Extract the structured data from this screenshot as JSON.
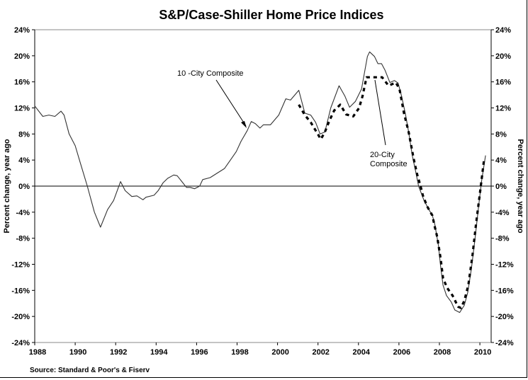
{
  "chart_data": {
    "type": "line",
    "title": "S&P/Case-Shiller Home Price Indices",
    "xlabel": "",
    "ylabel": "Percent change, year ago",
    "ylabel_right": "Percent change, year ago",
    "xlim": [
      1988,
      2010.5
    ],
    "ylim": [
      -24,
      24
    ],
    "x_ticks": [
      "1988",
      "1990",
      "1992",
      "1994",
      "1996",
      "1998",
      "2000",
      "2002",
      "2004",
      "2006",
      "2008",
      "2010"
    ],
    "y_ticks": [
      "24%",
      "20%",
      "16%",
      "12%",
      "8%",
      "4%",
      "0%",
      "-4%",
      "-8%",
      "-12%",
      "-16%",
      "-20%",
      "-24%"
    ],
    "grid": false,
    "source": "Source: Standard & Poor's & Fiserv",
    "annotations": [
      {
        "text": "10 -City Composite",
        "series": "10-City Composite"
      },
      {
        "text_lines": [
          "20-City",
          "Composite"
        ],
        "series": "20-City Composite"
      }
    ],
    "series": [
      {
        "name": "10-City Composite",
        "style": "solid",
        "color": "#333333",
        "points": [
          [
            1988.0,
            12.3
          ],
          [
            1988.4,
            10.7
          ],
          [
            1988.7,
            10.9
          ],
          [
            1989.0,
            10.7
          ],
          [
            1989.3,
            11.5
          ],
          [
            1989.45,
            10.9
          ],
          [
            1989.7,
            8.0
          ],
          [
            1990.0,
            6.2
          ],
          [
            1990.25,
            3.6
          ],
          [
            1990.6,
            0.0
          ],
          [
            1990.95,
            -4.0
          ],
          [
            1991.25,
            -6.3
          ],
          [
            1991.6,
            -3.6
          ],
          [
            1991.9,
            -2.2
          ],
          [
            1992.24,
            0.7
          ],
          [
            1992.47,
            -0.7
          ],
          [
            1992.8,
            -1.6
          ],
          [
            1993.05,
            -1.5
          ],
          [
            1993.35,
            -2.1
          ],
          [
            1993.5,
            -1.7
          ],
          [
            1993.9,
            -1.4
          ],
          [
            1994.1,
            -0.7
          ],
          [
            1994.34,
            0.5
          ],
          [
            1994.57,
            1.2
          ],
          [
            1994.87,
            1.7
          ],
          [
            1995.04,
            1.6
          ],
          [
            1995.27,
            0.7
          ],
          [
            1995.5,
            -0.2
          ],
          [
            1995.68,
            -0.2
          ],
          [
            1995.9,
            -0.4
          ],
          [
            1996.15,
            0.0
          ],
          [
            1996.3,
            1.0
          ],
          [
            1996.67,
            1.3
          ],
          [
            1997.02,
            2.0
          ],
          [
            1997.38,
            2.7
          ],
          [
            1997.67,
            4.0
          ],
          [
            1997.96,
            5.3
          ],
          [
            1998.2,
            6.9
          ],
          [
            1998.5,
            8.5
          ],
          [
            1998.7,
            9.9
          ],
          [
            1998.9,
            9.6
          ],
          [
            1999.13,
            8.9
          ],
          [
            1999.3,
            9.4
          ],
          [
            1999.65,
            9.4
          ],
          [
            2000.06,
            10.9
          ],
          [
            2000.41,
            13.4
          ],
          [
            2000.64,
            13.2
          ],
          [
            2001.05,
            14.7
          ],
          [
            2001.35,
            11.2
          ],
          [
            2001.64,
            10.9
          ],
          [
            2001.88,
            9.8
          ],
          [
            2002.1,
            8.0
          ],
          [
            2002.34,
            8.3
          ],
          [
            2002.63,
            12.0
          ],
          [
            2003.04,
            15.4
          ],
          [
            2003.33,
            13.8
          ],
          [
            2003.56,
            12.1
          ],
          [
            2003.85,
            13.0
          ],
          [
            2004.15,
            14.9
          ],
          [
            2004.44,
            19.9
          ],
          [
            2004.55,
            20.6
          ],
          [
            2004.79,
            19.9
          ],
          [
            2004.96,
            18.8
          ],
          [
            2005.14,
            18.8
          ],
          [
            2005.31,
            17.8
          ],
          [
            2005.55,
            15.9
          ],
          [
            2005.78,
            16.2
          ],
          [
            2005.96,
            15.8
          ],
          [
            2006.13,
            13.8
          ],
          [
            2006.31,
            11.2
          ],
          [
            2006.48,
            8.3
          ],
          [
            2006.66,
            4.7
          ],
          [
            2006.83,
            2.2
          ],
          [
            2006.97,
            0.0
          ],
          [
            2007.24,
            -2.2
          ],
          [
            2007.48,
            -3.6
          ],
          [
            2007.65,
            -4.5
          ],
          [
            2007.77,
            -5.8
          ],
          [
            2007.95,
            -9.1
          ],
          [
            2008.06,
            -12.3
          ],
          [
            2008.18,
            -15.2
          ],
          [
            2008.35,
            -16.8
          ],
          [
            2008.59,
            -17.8
          ],
          [
            2008.76,
            -19.0
          ],
          [
            2009.0,
            -19.4
          ],
          [
            2009.23,
            -18.3
          ],
          [
            2009.4,
            -16.3
          ],
          [
            2009.58,
            -12.7
          ],
          [
            2009.75,
            -8.3
          ],
          [
            2009.93,
            -3.3
          ],
          [
            2010.08,
            0.7
          ],
          [
            2010.28,
            4.7
          ]
        ]
      },
      {
        "name": "20-City Composite",
        "style": "dashed",
        "color": "#000000",
        "points": [
          [
            2001.05,
            12.5
          ],
          [
            2001.35,
            10.9
          ],
          [
            2001.64,
            9.8
          ],
          [
            2001.93,
            8.3
          ],
          [
            2002.14,
            7.2
          ],
          [
            2002.34,
            8.3
          ],
          [
            2002.57,
            10.1
          ],
          [
            2002.8,
            11.6
          ],
          [
            2003.1,
            12.5
          ],
          [
            2003.39,
            11.0
          ],
          [
            2003.74,
            10.7
          ],
          [
            2004.03,
            12.0
          ],
          [
            2004.2,
            13.8
          ],
          [
            2004.4,
            16.7
          ],
          [
            2004.73,
            16.7
          ],
          [
            2005.17,
            16.7
          ],
          [
            2005.49,
            15.4
          ],
          [
            2005.84,
            15.9
          ],
          [
            2006.02,
            15.0
          ],
          [
            2006.25,
            11.2
          ],
          [
            2006.48,
            8.3
          ],
          [
            2006.72,
            4.3
          ],
          [
            2006.9,
            1.8
          ],
          [
            2007.07,
            0.0
          ],
          [
            2007.18,
            -1.4
          ],
          [
            2007.39,
            -3.1
          ],
          [
            2007.65,
            -4.5
          ],
          [
            2007.77,
            -6.2
          ],
          [
            2007.89,
            -7.8
          ],
          [
            2008.06,
            -11.1
          ],
          [
            2008.18,
            -14.1
          ],
          [
            2008.38,
            -15.6
          ],
          [
            2008.65,
            -16.8
          ],
          [
            2008.92,
            -18.5
          ],
          [
            2009.06,
            -18.7
          ],
          [
            2009.23,
            -17.6
          ],
          [
            2009.43,
            -15.2
          ],
          [
            2009.64,
            -10.5
          ],
          [
            2009.81,
            -5.8
          ],
          [
            2009.99,
            -1.4
          ],
          [
            2010.2,
            3.9
          ]
        ]
      }
    ]
  }
}
